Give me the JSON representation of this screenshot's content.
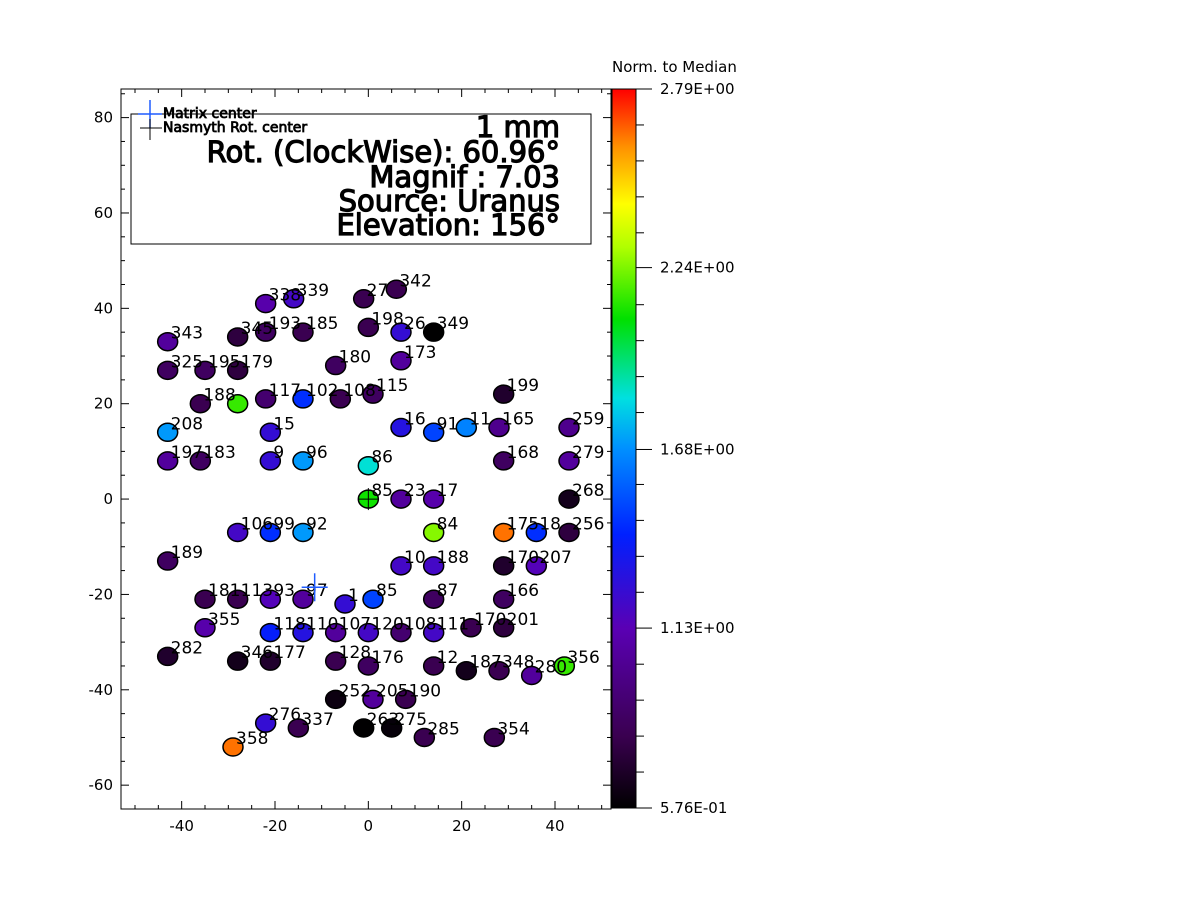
{
  "chart_data": {
    "type": "scatter",
    "legend": {
      "entries": [
        {
          "label": "Matrix center",
          "color": "#1f5cff"
        },
        {
          "label": "Nasmyth Rot. center",
          "color": "#000000"
        }
      ]
    },
    "info_box": {
      "scale": "1 mm",
      "rotation": "Rot. (ClockWise):  60.96°",
      "magnif": "Magnif :  7.03",
      "source": "Source: Uranus",
      "elevation": "Elevation: 156°"
    },
    "xlim": [
      -53,
      52
    ],
    "ylim": [
      -65,
      86
    ],
    "x_ticks": [
      {
        "value": -40,
        "label": "-40"
      },
      {
        "value": -20,
        "label": "-20"
      },
      {
        "value": 0,
        "label": "0"
      },
      {
        "value": 20,
        "label": "20"
      },
      {
        "value": 40,
        "label": "40"
      }
    ],
    "y_ticks": [
      {
        "value": 80,
        "label": "80"
      },
      {
        "value": 60,
        "label": "60"
      },
      {
        "value": 40,
        "label": "40"
      },
      {
        "value": 20,
        "label": "20"
      },
      {
        "value": 0,
        "label": "0"
      },
      {
        "value": -20,
        "label": "-20"
      },
      {
        "value": -40,
        "label": "-40"
      },
      {
        "value": -60,
        "label": "-60"
      }
    ],
    "matrix_center": {
      "x": -11.5,
      "y": -18.5
    },
    "nasmyth_center": {
      "x": 0,
      "y": 0
    },
    "colorbar": {
      "title": "Norm. to Median",
      "min": 0.576,
      "max": 2.79,
      "ticks": [
        {
          "value": 2.79,
          "label": "2.79E+00"
        },
        {
          "value": 2.24,
          "label": "2.24E+00"
        },
        {
          "value": 1.68,
          "label": "1.68E+00"
        },
        {
          "value": 1.13,
          "label": "1.13E+00"
        },
        {
          "value": 0.576,
          "label": "5.76E-01"
        }
      ]
    },
    "points": [
      {
        "x": -22,
        "y": 41,
        "v": 1.1,
        "label": "338"
      },
      {
        "x": -16,
        "y": 42,
        "v": 1.2,
        "label": "339"
      },
      {
        "x": -1,
        "y": 42,
        "v": 0.8,
        "label": "27"
      },
      {
        "x": 6,
        "y": 44,
        "v": 0.8,
        "label": "342"
      },
      {
        "x": -43,
        "y": 33,
        "v": 1.05,
        "label": "343"
      },
      {
        "x": -28,
        "y": 34,
        "v": 0.75,
        "label": "345"
      },
      {
        "x": -22,
        "y": 35,
        "v": 0.85,
        "label": "193"
      },
      {
        "x": -14,
        "y": 35,
        "v": 0.8,
        "label": "185"
      },
      {
        "x": 0,
        "y": 36,
        "v": 0.8,
        "label": "198"
      },
      {
        "x": 7,
        "y": 35,
        "v": 1.25,
        "label": "26"
      },
      {
        "x": 14,
        "y": 35,
        "v": 0.58,
        "label": "349"
      },
      {
        "x": -43,
        "y": 27,
        "v": 0.85,
        "label": "325"
      },
      {
        "x": -35,
        "y": 27,
        "v": 0.85,
        "label": "195"
      },
      {
        "x": -28,
        "y": 27,
        "v": 0.75,
        "label": "179"
      },
      {
        "x": -7,
        "y": 28,
        "v": 0.85,
        "label": "180"
      },
      {
        "x": 7,
        "y": 29,
        "v": 1.05,
        "label": "173"
      },
      {
        "x": -36,
        "y": 20,
        "v": 0.8,
        "label": "188"
      },
      {
        "x": -28,
        "y": 20,
        "v": 2.15,
        "label": ""
      },
      {
        "x": -22,
        "y": 21,
        "v": 0.9,
        "label": "117"
      },
      {
        "x": -14,
        "y": 21,
        "v": 1.45,
        "label": "102"
      },
      {
        "x": -6,
        "y": 21,
        "v": 0.8,
        "label": "108"
      },
      {
        "x": 1,
        "y": 22,
        "v": 0.85,
        "label": "115"
      },
      {
        "x": 29,
        "y": 22,
        "v": 0.7,
        "label": "199"
      },
      {
        "x": -43,
        "y": 14,
        "v": 1.7,
        "label": "208"
      },
      {
        "x": -21,
        "y": 14,
        "v": 1.25,
        "label": "15"
      },
      {
        "x": 7,
        "y": 15,
        "v": 1.3,
        "label": "16"
      },
      {
        "x": 14,
        "y": 14,
        "v": 1.5,
        "label": "91"
      },
      {
        "x": 21,
        "y": 15,
        "v": 1.65,
        "label": "11"
      },
      {
        "x": 28,
        "y": 15,
        "v": 1.0,
        "label": "165"
      },
      {
        "x": 43,
        "y": 15,
        "v": 1.0,
        "label": "259"
      },
      {
        "x": -43,
        "y": 8,
        "v": 1.05,
        "label": "197"
      },
      {
        "x": -36,
        "y": 8,
        "v": 0.85,
        "label": "183"
      },
      {
        "x": -21,
        "y": 8,
        "v": 1.25,
        "label": "9"
      },
      {
        "x": -14,
        "y": 8,
        "v": 1.7,
        "label": "96"
      },
      {
        "x": 0,
        "y": 7,
        "v": 1.85,
        "label": "86"
      },
      {
        "x": 29,
        "y": 8,
        "v": 0.85,
        "label": "168"
      },
      {
        "x": 43,
        "y": 8,
        "v": 1.05,
        "label": "279"
      },
      {
        "x": 43,
        "y": 0,
        "v": 0.65,
        "label": "268"
      },
      {
        "x": 0,
        "y": 0,
        "v": 2.1,
        "label": "85"
      },
      {
        "x": 7,
        "y": 0,
        "v": 1.05,
        "label": "23"
      },
      {
        "x": 14,
        "y": 0,
        "v": 1.1,
        "label": "17"
      },
      {
        "x": -28,
        "y": -7,
        "v": 1.2,
        "label": "106"
      },
      {
        "x": -21,
        "y": -7,
        "v": 1.45,
        "label": "99"
      },
      {
        "x": -14,
        "y": -7,
        "v": 1.7,
        "label": "92"
      },
      {
        "x": 14,
        "y": -7,
        "v": 2.25,
        "label": "84"
      },
      {
        "x": 29,
        "y": -7,
        "v": 2.65,
        "label": "175"
      },
      {
        "x": 36,
        "y": -7,
        "v": 1.45,
        "label": "18"
      },
      {
        "x": 43,
        "y": -7,
        "v": 0.75,
        "label": "256"
      },
      {
        "x": -43,
        "y": -13,
        "v": 0.85,
        "label": "189"
      },
      {
        "x": 7,
        "y": -14,
        "v": 1.2,
        "label": "10"
      },
      {
        "x": 14,
        "y": -14,
        "v": 1.2,
        "label": "188"
      },
      {
        "x": 29,
        "y": -14,
        "v": 0.7,
        "label": "170"
      },
      {
        "x": 36,
        "y": -14,
        "v": 1.15,
        "label": "207"
      },
      {
        "x": -35,
        "y": -21,
        "v": 0.8,
        "label": "181"
      },
      {
        "x": -28,
        "y": -21,
        "v": 0.8,
        "label": "113"
      },
      {
        "x": -21,
        "y": -21,
        "v": 1.15,
        "label": "93"
      },
      {
        "x": -14,
        "y": -21,
        "v": 1.05,
        "label": "97"
      },
      {
        "x": -5,
        "y": -22,
        "v": 1.25,
        "label": "1"
      },
      {
        "x": 1,
        "y": -21,
        "v": 1.5,
        "label": "85"
      },
      {
        "x": 14,
        "y": -21,
        "v": 0.85,
        "label": "87"
      },
      {
        "x": 29,
        "y": -21,
        "v": 0.85,
        "label": "166"
      },
      {
        "x": -35,
        "y": -27,
        "v": 1.1,
        "label": "355"
      },
      {
        "x": -21,
        "y": -28,
        "v": 1.4,
        "label": "118"
      },
      {
        "x": -14,
        "y": -28,
        "v": 1.3,
        "label": "110"
      },
      {
        "x": -7,
        "y": -28,
        "v": 1.05,
        "label": "107"
      },
      {
        "x": 0,
        "y": -28,
        "v": 1.2,
        "label": "120"
      },
      {
        "x": 7,
        "y": -28,
        "v": 0.9,
        "label": "108"
      },
      {
        "x": 14,
        "y": -28,
        "v": 1.2,
        "label": "111"
      },
      {
        "x": 22,
        "y": -27,
        "v": 0.8,
        "label": "170"
      },
      {
        "x": 29,
        "y": -27,
        "v": 0.75,
        "label": "201"
      },
      {
        "x": -43,
        "y": -33,
        "v": 0.7,
        "label": "282"
      },
      {
        "x": -28,
        "y": -34,
        "v": 0.65,
        "label": "346"
      },
      {
        "x": -21,
        "y": -34,
        "v": 0.7,
        "label": "177"
      },
      {
        "x": -7,
        "y": -34,
        "v": 0.8,
        "label": "128"
      },
      {
        "x": 0,
        "y": -35,
        "v": 0.85,
        "label": "176"
      },
      {
        "x": 14,
        "y": -35,
        "v": 0.8,
        "label": "12"
      },
      {
        "x": 21,
        "y": -36,
        "v": 0.65,
        "label": "187"
      },
      {
        "x": 28,
        "y": -36,
        "v": 0.8,
        "label": "348"
      },
      {
        "x": 35,
        "y": -37,
        "v": 1.05,
        "label": "280"
      },
      {
        "x": 42,
        "y": -35,
        "v": 2.15,
        "label": "356"
      },
      {
        "x": -7,
        "y": -42,
        "v": 0.62,
        "label": "252"
      },
      {
        "x": 1,
        "y": -42,
        "v": 1.05,
        "label": "205"
      },
      {
        "x": 8,
        "y": -42,
        "v": 0.8,
        "label": "190"
      },
      {
        "x": -22,
        "y": -47,
        "v": 1.25,
        "label": "276"
      },
      {
        "x": -15,
        "y": -48,
        "v": 0.8,
        "label": "337"
      },
      {
        "x": -1,
        "y": -48,
        "v": 0.58,
        "label": "263"
      },
      {
        "x": 5,
        "y": -48,
        "v": 0.6,
        "label": "275"
      },
      {
        "x": 12,
        "y": -50,
        "v": 0.8,
        "label": "285"
      },
      {
        "x": 27,
        "y": -50,
        "v": 0.8,
        "label": "354"
      },
      {
        "x": -29,
        "y": -52,
        "v": 2.65,
        "label": "358"
      }
    ]
  }
}
